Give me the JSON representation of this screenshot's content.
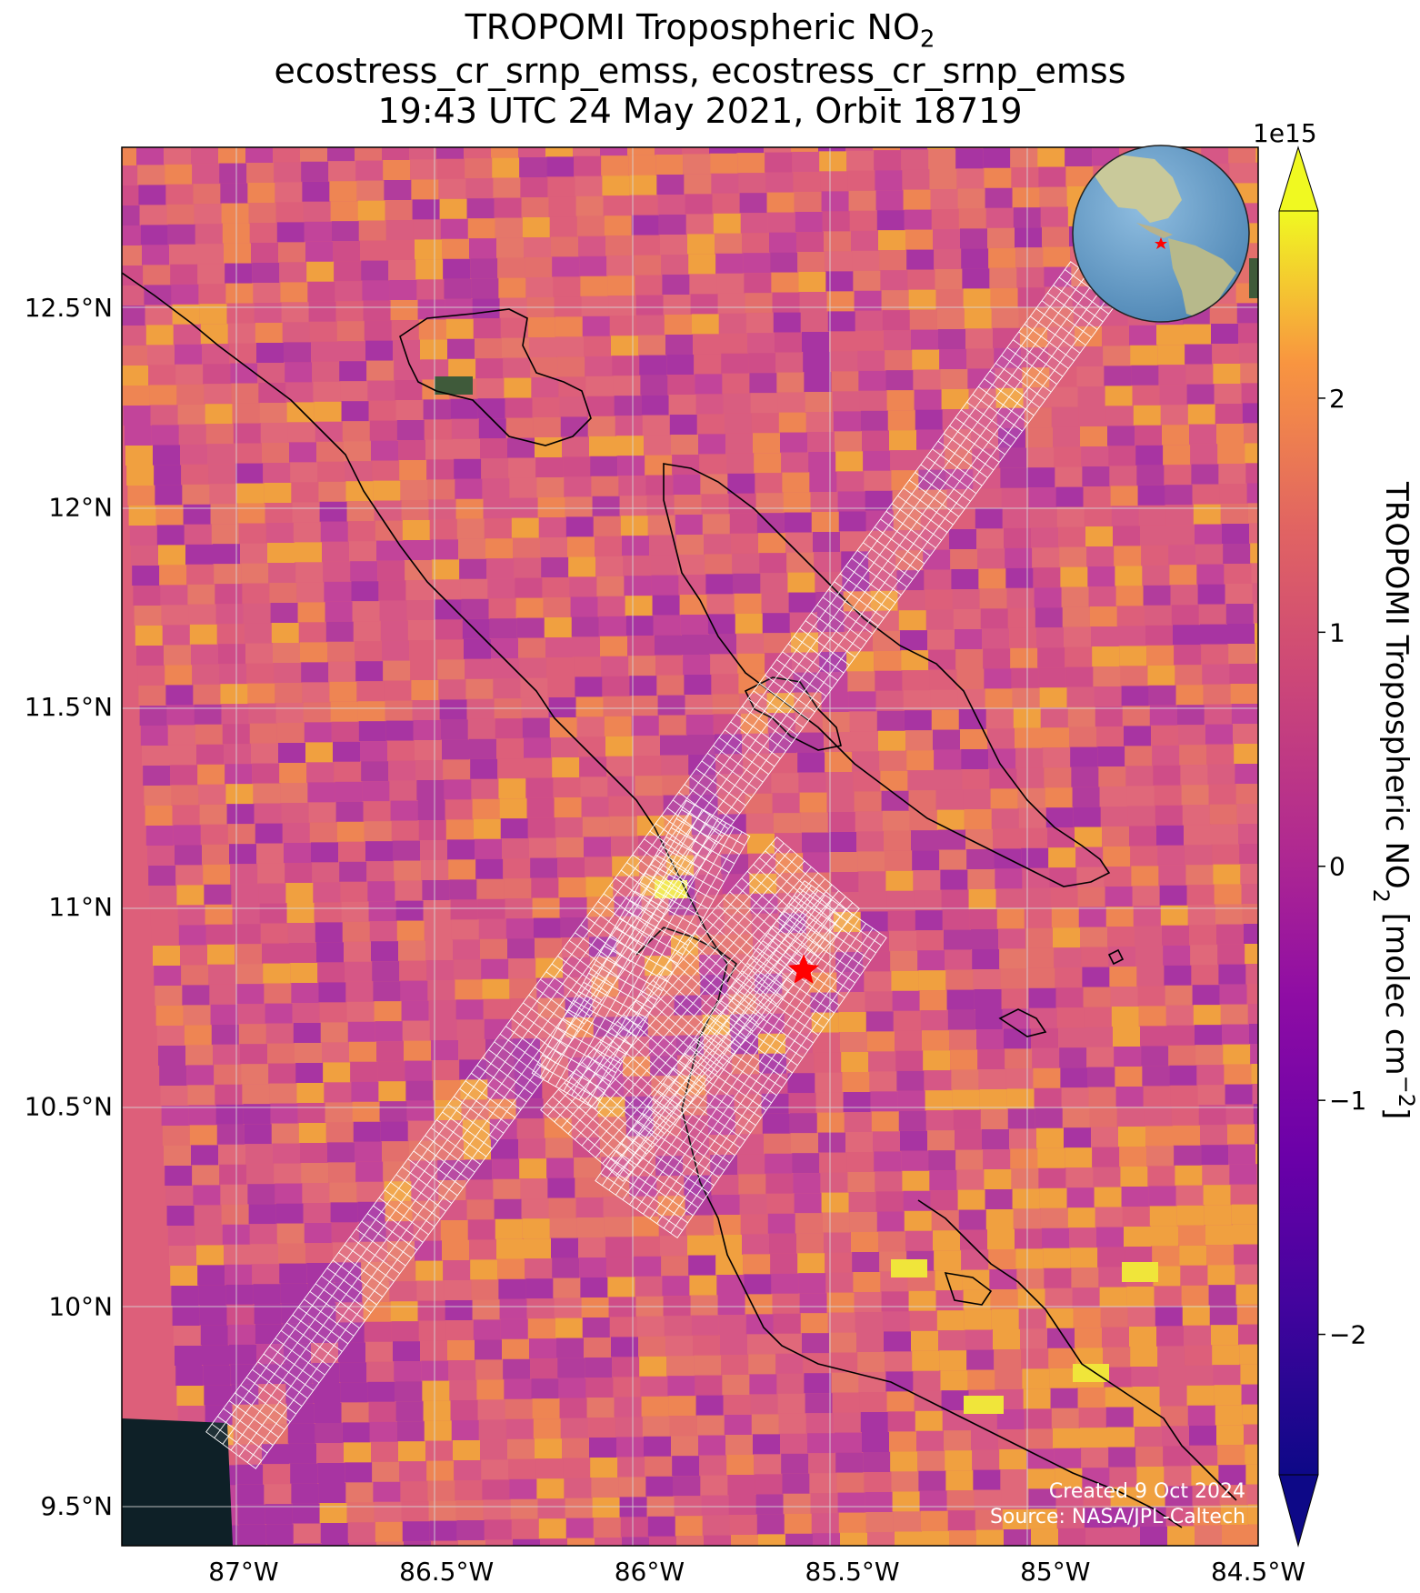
{
  "title": {
    "line1_main": "TROPOMI Tropospheric NO",
    "line1_sub": "2",
    "line2": "ecostress_cr_srnp_emss, ecostress_cr_srnp_emss",
    "line3": "19:43 UTC 24 May 2021, Orbit 18719"
  },
  "axes": {
    "lon_ticks": [
      "87°W",
      "86.5°W",
      "86°W",
      "85.5°W",
      "85°W",
      "84.5°W"
    ],
    "lat_ticks": [
      "12.5°N",
      "12°N",
      "11.5°N",
      "11°N",
      "10.5°N",
      "10°N",
      "9.5°N"
    ],
    "lon_range": [
      -87.3,
      -84.5
    ],
    "lat_range": [
      9.4,
      12.9
    ]
  },
  "colorbar": {
    "label_main": "TROPOMI Tropospheric NO",
    "label_sub": "2",
    "label_units": " [molec cm",
    "label_exp": "−2",
    "label_close": "]",
    "multiplier": "1e15",
    "ticks": [
      "2",
      "1",
      "0",
      "−1",
      "−2"
    ],
    "range": [
      -2.6,
      2.8
    ],
    "colormap": "plasma"
  },
  "target": {
    "lon": -85.62,
    "lat": 10.84,
    "marker": "red-star",
    "color": "#ff0000"
  },
  "inset_globe": {
    "description_icon": "globe-icon",
    "ocean": "#6fa3c9",
    "land": "#c8c89a"
  },
  "credits": {
    "created": "Created 9 Oct 2024",
    "source": "Source: NASA/JPL-Caltech"
  },
  "colors": {
    "ocean_background": "#dd5f7a",
    "footprint_outline": "#ffffff",
    "coastline": "#000000",
    "no_data": "#0e2027"
  }
}
